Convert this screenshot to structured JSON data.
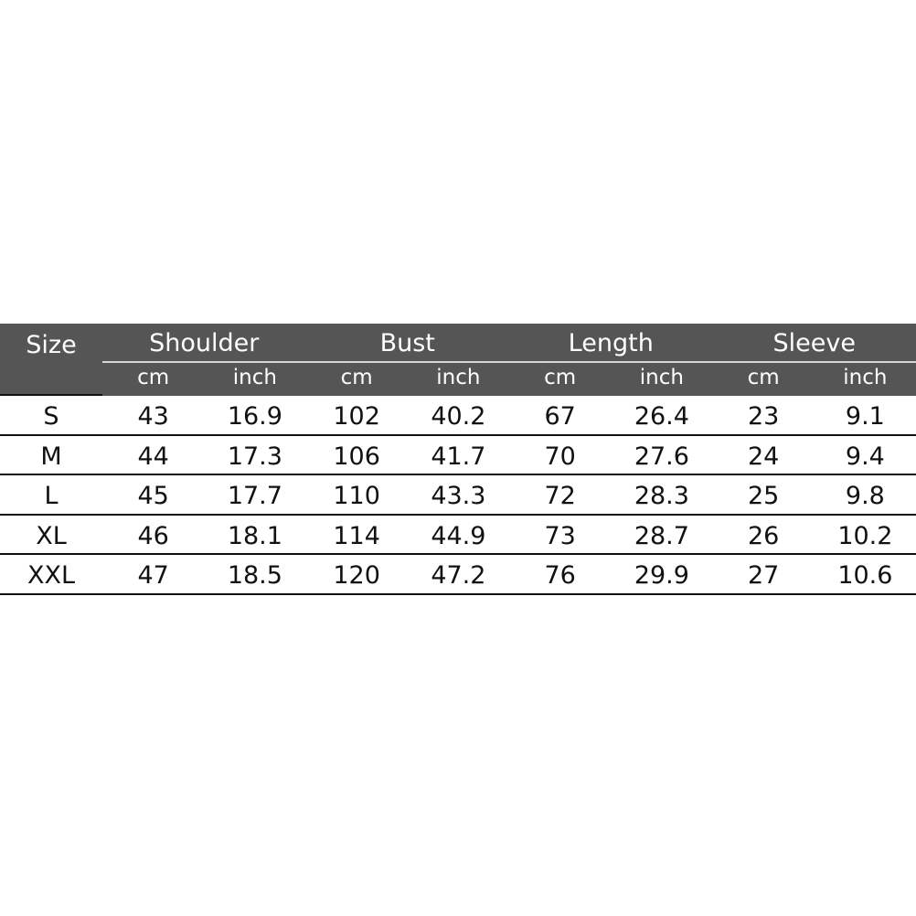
{
  "table": {
    "size_header": "Size",
    "groups": [
      "Shoulder",
      "Bust",
      "Length",
      "Sleeve"
    ],
    "units": [
      "cm",
      "inch"
    ],
    "rows": [
      {
        "size": "S",
        "values": [
          "43",
          "16.9",
          "102",
          "40.2",
          "67",
          "26.4",
          "23",
          "9.1"
        ]
      },
      {
        "size": "M",
        "values": [
          "44",
          "17.3",
          "106",
          "41.7",
          "70",
          "27.6",
          "24",
          "9.4"
        ]
      },
      {
        "size": "L",
        "values": [
          "45",
          "17.7",
          "110",
          "43.3",
          "72",
          "28.3",
          "25",
          "9.8"
        ]
      },
      {
        "size": "XL",
        "values": [
          "46",
          "18.1",
          "114",
          "44.9",
          "73",
          "28.7",
          "26",
          "10.2"
        ]
      },
      {
        "size": "XXL",
        "values": [
          "47",
          "18.5",
          "120",
          "47.2",
          "76",
          "29.9",
          "27",
          "10.6"
        ]
      }
    ],
    "header_color": "#555555"
  }
}
